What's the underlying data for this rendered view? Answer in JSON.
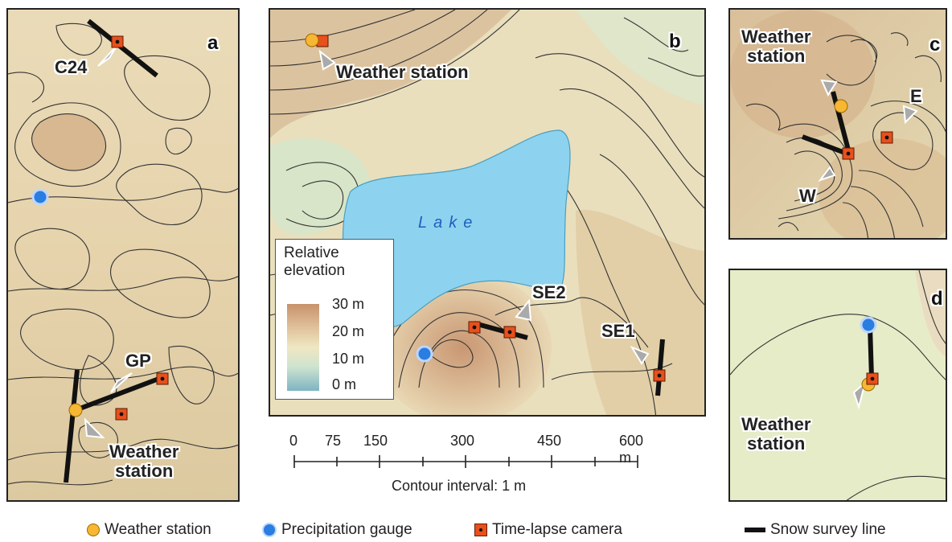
{
  "panels": {
    "a": {
      "label": "a",
      "sites": [
        "C24",
        "GP"
      ],
      "weather_station": "Weather\nstation"
    },
    "b": {
      "label": "b",
      "weather_station": "Weather station",
      "lake": "Lake",
      "sites": [
        "SE2",
        "SE1"
      ]
    },
    "c": {
      "label": "c",
      "weather_station": "Weather\nstation",
      "sites": [
        "E",
        "W"
      ]
    },
    "d": {
      "label": "d",
      "weather_station": "Weather\nstation"
    }
  },
  "elevation_legend": {
    "title": "Relative\nelevation",
    "ticks": [
      "30 m",
      "20 m",
      "10 m",
      "0 m"
    ]
  },
  "scale_bar": {
    "ticks": [
      "0",
      "75",
      "150",
      "300",
      "450",
      "600 m"
    ],
    "note": "Contour interval: 1 m"
  },
  "legend": {
    "weather_station": "Weather station",
    "precipitation_gauge": "Precipitation gauge",
    "time_lapse_camera": "Time-lapse camera",
    "snow_survey_line": "Snow survey line"
  },
  "colors": {
    "weather_station": "#f7b733",
    "precipitation_gauge": "#2a7de1",
    "camera": "#e8501c",
    "lake": "#8dd3ef",
    "terrain_high": "#c7926b",
    "terrain_mid": "#efe7c2",
    "terrain_low": "#7fb4c3"
  }
}
